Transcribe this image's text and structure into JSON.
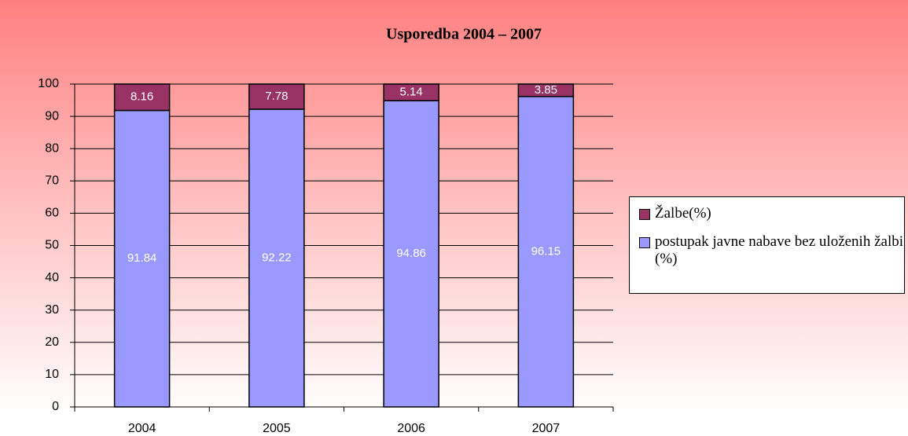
{
  "chart_data": {
    "type": "stacked_bar",
    "title": "Usporedba 2004 – 2007",
    "categories": [
      "2004",
      "2005",
      "2006",
      "2007"
    ],
    "series": [
      {
        "name": "postupak javne nabave bez uloženih žalbi (%)",
        "color": "#9999ff",
        "values": [
          91.84,
          92.22,
          94.86,
          96.15
        ]
      },
      {
        "name": "Žalbe(%)",
        "color": "#993366",
        "values": [
          8.16,
          7.78,
          5.14,
          3.85
        ]
      }
    ],
    "ylim": [
      0,
      100
    ],
    "yticks": [
      0,
      10,
      20,
      30,
      40,
      50,
      60,
      70,
      80,
      90,
      100
    ],
    "grid": true,
    "legend": "right"
  }
}
